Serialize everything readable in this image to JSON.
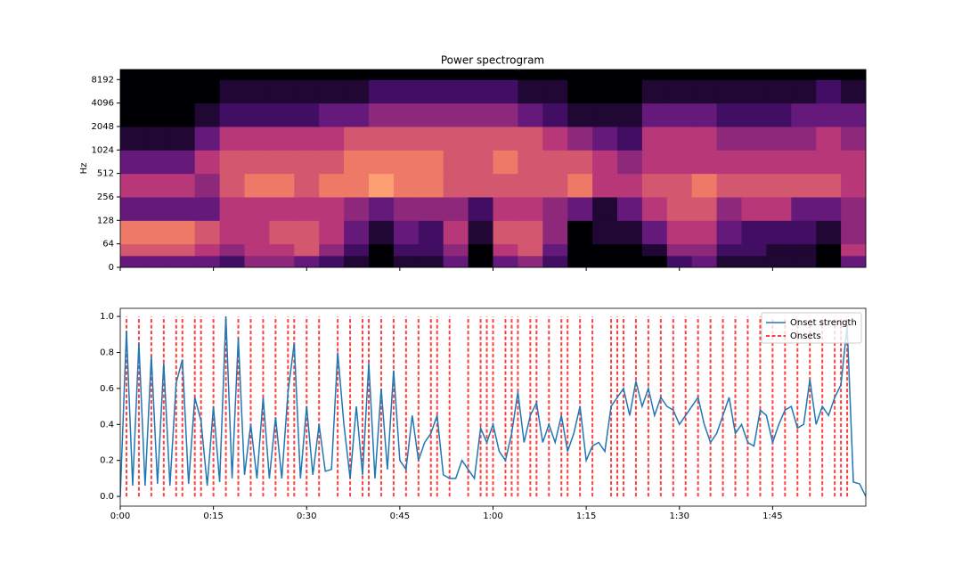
{
  "chart_data": [
    {
      "type": "heatmap",
      "title": "Power spectrogram",
      "ylabel": "Hz",
      "colormap": "magma",
      "yscale": "symlog",
      "linthresh": 64,
      "ylim": [
        0,
        11025
      ],
      "yticks": [
        0,
        64,
        128,
        256,
        512,
        1024,
        2048,
        4096,
        8192
      ],
      "x_edges": [
        0,
        4,
        8,
        12,
        16,
        20,
        24,
        28,
        32,
        36,
        40,
        44,
        48,
        52,
        56,
        60,
        64,
        68,
        72,
        76,
        80,
        84,
        88,
        92,
        96,
        100,
        104,
        108,
        112,
        116,
        120
      ],
      "freq_edges": [
        0,
        32,
        64,
        128,
        256,
        512,
        1024,
        2048,
        4096,
        8192,
        11025
      ],
      "power": [
        [
          0.3,
          0.3,
          0.3,
          0.3,
          0.2,
          0.4,
          0.4,
          0.3,
          0.2,
          0.1,
          0.0,
          0.1,
          0.1,
          0.3,
          0.0,
          0.3,
          0.4,
          0.2,
          0.0,
          0.0,
          0.0,
          0.0,
          0.2,
          0.3,
          0.1,
          0.1,
          0.1,
          0.1,
          0.0,
          0.3
        ],
        [
          0.6,
          0.6,
          0.6,
          0.5,
          0.4,
          0.5,
          0.5,
          0.6,
          0.4,
          0.2,
          0.0,
          0.2,
          0.2,
          0.4,
          0.0,
          0.5,
          0.6,
          0.3,
          0.0,
          0.0,
          0.0,
          0.1,
          0.4,
          0.4,
          0.2,
          0.2,
          0.1,
          0.1,
          0.0,
          0.5
        ],
        [
          0.7,
          0.7,
          0.7,
          0.6,
          0.5,
          0.5,
          0.6,
          0.6,
          0.5,
          0.3,
          0.1,
          0.3,
          0.2,
          0.5,
          0.1,
          0.6,
          0.6,
          0.4,
          0.0,
          0.1,
          0.1,
          0.3,
          0.5,
          0.5,
          0.3,
          0.2,
          0.2,
          0.2,
          0.1,
          0.4
        ],
        [
          0.3,
          0.3,
          0.3,
          0.3,
          0.5,
          0.5,
          0.5,
          0.5,
          0.5,
          0.4,
          0.3,
          0.4,
          0.4,
          0.4,
          0.2,
          0.5,
          0.5,
          0.4,
          0.3,
          0.1,
          0.3,
          0.5,
          0.6,
          0.6,
          0.4,
          0.5,
          0.5,
          0.3,
          0.3,
          0.4
        ],
        [
          0.5,
          0.5,
          0.5,
          0.4,
          0.6,
          0.7,
          0.7,
          0.6,
          0.7,
          0.7,
          0.8,
          0.7,
          0.7,
          0.6,
          0.6,
          0.6,
          0.6,
          0.6,
          0.7,
          0.5,
          0.5,
          0.6,
          0.6,
          0.7,
          0.6,
          0.6,
          0.6,
          0.6,
          0.6,
          0.5
        ],
        [
          0.3,
          0.3,
          0.3,
          0.5,
          0.6,
          0.6,
          0.6,
          0.6,
          0.6,
          0.7,
          0.7,
          0.7,
          0.7,
          0.6,
          0.6,
          0.7,
          0.6,
          0.6,
          0.6,
          0.5,
          0.4,
          0.5,
          0.5,
          0.5,
          0.5,
          0.5,
          0.5,
          0.5,
          0.5,
          0.5
        ],
        [
          0.1,
          0.1,
          0.1,
          0.3,
          0.5,
          0.5,
          0.5,
          0.5,
          0.5,
          0.6,
          0.6,
          0.6,
          0.6,
          0.6,
          0.6,
          0.6,
          0.6,
          0.5,
          0.4,
          0.3,
          0.2,
          0.5,
          0.5,
          0.5,
          0.4,
          0.4,
          0.4,
          0.4,
          0.5,
          0.4
        ],
        [
          0.0,
          0.0,
          0.0,
          0.1,
          0.2,
          0.2,
          0.2,
          0.2,
          0.3,
          0.3,
          0.4,
          0.4,
          0.4,
          0.4,
          0.4,
          0.4,
          0.3,
          0.2,
          0.1,
          0.1,
          0.1,
          0.3,
          0.3,
          0.3,
          0.2,
          0.2,
          0.2,
          0.3,
          0.3,
          0.3
        ],
        [
          0.0,
          0.0,
          0.0,
          0.0,
          0.1,
          0.1,
          0.1,
          0.1,
          0.1,
          0.1,
          0.2,
          0.2,
          0.2,
          0.2,
          0.2,
          0.2,
          0.1,
          0.1,
          0.0,
          0.0,
          0.0,
          0.1,
          0.1,
          0.1,
          0.1,
          0.1,
          0.1,
          0.1,
          0.2,
          0.1
        ],
        [
          0,
          0,
          0,
          0,
          0,
          0,
          0,
          0,
          0,
          0,
          0,
          0,
          0,
          0,
          0,
          0,
          0,
          0,
          0,
          0,
          0,
          0,
          0,
          0,
          0,
          0,
          0,
          0,
          0,
          0
        ]
      ]
    },
    {
      "type": "line",
      "xlim": [
        0,
        120
      ],
      "ylim": [
        -0.054,
        1.045
      ],
      "xticks": [
        {
          "value": 0,
          "label": "0:00"
        },
        {
          "value": 15,
          "label": "0:15"
        },
        {
          "value": 30,
          "label": "0:30"
        },
        {
          "value": 45,
          "label": "0:45"
        },
        {
          "value": 60,
          "label": "1:00"
        },
        {
          "value": 75,
          "label": "1:15"
        },
        {
          "value": 90,
          "label": "1:30"
        },
        {
          "value": 105,
          "label": "1:45"
        }
      ],
      "yticks": [
        {
          "value": 0,
          "label": "0.0"
        },
        {
          "value": 0.2,
          "label": "0.2"
        },
        {
          "value": 0.4,
          "label": "0.4"
        },
        {
          "value": 0.6,
          "label": "0.6"
        },
        {
          "value": 0.8,
          "label": "0.8"
        },
        {
          "value": 1,
          "label": "1.0"
        }
      ],
      "legend": "upper right",
      "x": [
        0,
        1,
        2,
        3,
        4,
        5,
        6,
        7,
        8,
        9,
        10,
        11,
        12,
        13,
        14,
        15,
        16,
        17,
        18,
        19,
        20,
        21,
        22,
        23,
        24,
        25,
        26,
        27,
        28,
        29,
        30,
        31,
        32,
        33,
        34,
        35,
        36,
        37,
        38,
        39,
        40,
        41,
        42,
        43,
        44,
        45,
        46,
        47,
        48,
        49,
        50,
        51,
        52,
        53,
        54,
        55,
        56,
        57,
        58,
        59,
        60,
        61,
        62,
        63,
        64,
        65,
        66,
        67,
        68,
        69,
        70,
        71,
        72,
        73,
        74,
        75,
        76,
        77,
        78,
        79,
        80,
        81,
        82,
        83,
        84,
        85,
        86,
        87,
        88,
        89,
        90,
        91,
        92,
        93,
        94,
        95,
        96,
        97,
        98,
        99,
        100,
        101,
        102,
        103,
        104,
        105,
        106,
        107,
        108,
        109,
        110,
        111,
        112,
        113,
        114,
        115,
        116,
        117,
        118,
        119,
        120
      ],
      "series": [
        {
          "name": "Onset strength",
          "color": "#1f77b4",
          "values": [
            0.0,
            0.92,
            0.06,
            0.85,
            0.06,
            0.78,
            0.07,
            0.74,
            0.06,
            0.63,
            0.76,
            0.07,
            0.55,
            0.42,
            0.06,
            0.5,
            0.08,
            1.0,
            0.1,
            0.88,
            0.12,
            0.4,
            0.1,
            0.55,
            0.1,
            0.44,
            0.1,
            0.58,
            0.85,
            0.1,
            0.5,
            0.12,
            0.4,
            0.14,
            0.15,
            0.8,
            0.4,
            0.1,
            0.5,
            0.12,
            0.74,
            0.1,
            0.6,
            0.15,
            0.7,
            0.2,
            0.15,
            0.45,
            0.2,
            0.3,
            0.35,
            0.45,
            0.12,
            0.1,
            0.1,
            0.2,
            0.15,
            0.1,
            0.38,
            0.3,
            0.4,
            0.25,
            0.2,
            0.35,
            0.58,
            0.3,
            0.45,
            0.52,
            0.3,
            0.4,
            0.3,
            0.45,
            0.25,
            0.35,
            0.5,
            0.2,
            0.28,
            0.3,
            0.25,
            0.5,
            0.55,
            0.6,
            0.45,
            0.64,
            0.5,
            0.6,
            0.45,
            0.55,
            0.5,
            0.48,
            0.4,
            0.45,
            0.5,
            0.55,
            0.4,
            0.3,
            0.35,
            0.45,
            0.55,
            0.35,
            0.4,
            0.3,
            0.28,
            0.48,
            0.45,
            0.3,
            0.4,
            0.48,
            0.5,
            0.38,
            0.4,
            0.65,
            0.4,
            0.5,
            0.45,
            0.55,
            0.62,
            0.95,
            0.08,
            0.07,
            0.0
          ]
        }
      ],
      "onsets": {
        "name": "Onsets",
        "color": "#ff0000",
        "ymin": 0,
        "ymax": 1,
        "values": [
          1,
          3,
          5,
          7,
          9,
          10,
          12,
          13,
          15,
          17,
          19,
          21,
          23,
          25,
          27,
          28,
          30,
          32,
          35,
          37,
          39,
          40,
          42,
          44,
          46,
          48,
          50,
          51,
          53,
          56,
          58,
          59,
          60,
          62,
          63,
          64,
          66,
          67,
          69,
          71,
          72,
          74,
          76,
          79,
          80,
          81,
          83,
          85,
          87,
          89,
          91,
          93,
          95,
          97,
          99,
          101,
          103,
          105,
          107,
          109,
          111,
          113,
          115,
          116,
          117
        ]
      }
    }
  ]
}
